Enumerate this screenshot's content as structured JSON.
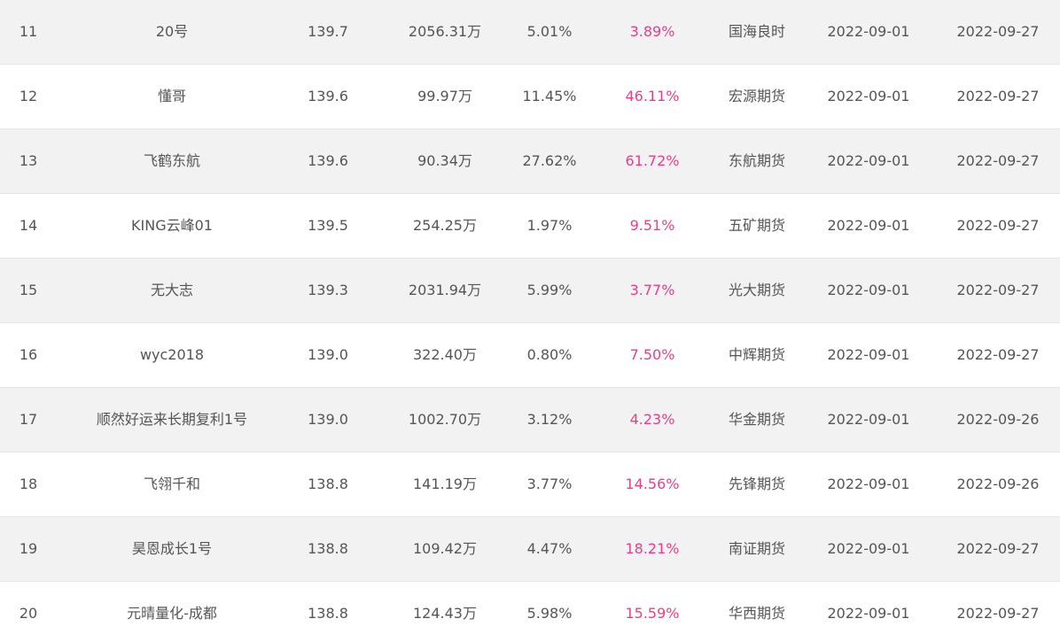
{
  "colors": {
    "row_alt_bg": "#f2f2f2",
    "row_bg": "#ffffff",
    "text": "#555555",
    "return_accent": "#e83e8c",
    "divider": "#e6e6e6"
  },
  "rows": [
    {
      "rank": "11",
      "name": "20号",
      "score": "139.7",
      "scale": "2056.31万",
      "drawdown": "5.01%",
      "return": "3.89%",
      "broker": "国海良时",
      "start": "2022-09-01",
      "end": "2022-09-27"
    },
    {
      "rank": "12",
      "name": "懂哥",
      "score": "139.6",
      "scale": "99.97万",
      "drawdown": "11.45%",
      "return": "46.11%",
      "broker": "宏源期货",
      "start": "2022-09-01",
      "end": "2022-09-27"
    },
    {
      "rank": "13",
      "name": "飞鹤东航",
      "score": "139.6",
      "scale": "90.34万",
      "drawdown": "27.62%",
      "return": "61.72%",
      "broker": "东航期货",
      "start": "2022-09-01",
      "end": "2022-09-27"
    },
    {
      "rank": "14",
      "name": "KING云峰01",
      "score": "139.5",
      "scale": "254.25万",
      "drawdown": "1.97%",
      "return": "9.51%",
      "broker": "五矿期货",
      "start": "2022-09-01",
      "end": "2022-09-27"
    },
    {
      "rank": "15",
      "name": "无大志",
      "score": "139.3",
      "scale": "2031.94万",
      "drawdown": "5.99%",
      "return": "3.77%",
      "broker": "光大期货",
      "start": "2022-09-01",
      "end": "2022-09-27"
    },
    {
      "rank": "16",
      "name": "wyc2018",
      "score": "139.0",
      "scale": "322.40万",
      "drawdown": "0.80%",
      "return": "7.50%",
      "broker": "中辉期货",
      "start": "2022-09-01",
      "end": "2022-09-27"
    },
    {
      "rank": "17",
      "name": "顺然好运来长期复利1号",
      "score": "139.0",
      "scale": "1002.70万",
      "drawdown": "3.12%",
      "return": "4.23%",
      "broker": "华金期货",
      "start": "2022-09-01",
      "end": "2022-09-26"
    },
    {
      "rank": "18",
      "name": "飞翎千和",
      "score": "138.8",
      "scale": "141.19万",
      "drawdown": "3.77%",
      "return": "14.56%",
      "broker": "先锋期货",
      "start": "2022-09-01",
      "end": "2022-09-26"
    },
    {
      "rank": "19",
      "name": "昊恩成长1号",
      "score": "138.8",
      "scale": "109.42万",
      "drawdown": "4.47%",
      "return": "18.21%",
      "broker": "南证期货",
      "start": "2022-09-01",
      "end": "2022-09-27"
    },
    {
      "rank": "20",
      "name": "元晴量化-成都",
      "score": "138.8",
      "scale": "124.43万",
      "drawdown": "5.98%",
      "return": "15.59%",
      "broker": "华西期货",
      "start": "2022-09-01",
      "end": "2022-09-27"
    }
  ]
}
